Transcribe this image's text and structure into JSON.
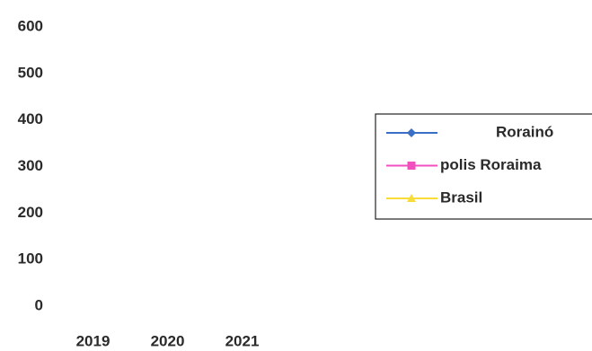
{
  "chart_data": {
    "type": "line",
    "categories": [
      "2019",
      "2020",
      "2021"
    ],
    "series": [
      {
        "name": "Rorainó",
        "color": "#3b6fc6",
        "marker": "diamond",
        "values": [
          null,
          null,
          null
        ]
      },
      {
        "name": "polis Roraima",
        "color": "#f24fbf",
        "marker": "square",
        "values": [
          null,
          null,
          null
        ]
      },
      {
        "name": "Brasil",
        "color": "#f7dc3a",
        "marker": "triangle",
        "values": [
          null,
          null,
          null
        ]
      }
    ],
    "ylim": [
      0,
      600
    ],
    "yticks": [
      0,
      100,
      200,
      300,
      400,
      500,
      600
    ],
    "grid": false,
    "legend": "right"
  }
}
